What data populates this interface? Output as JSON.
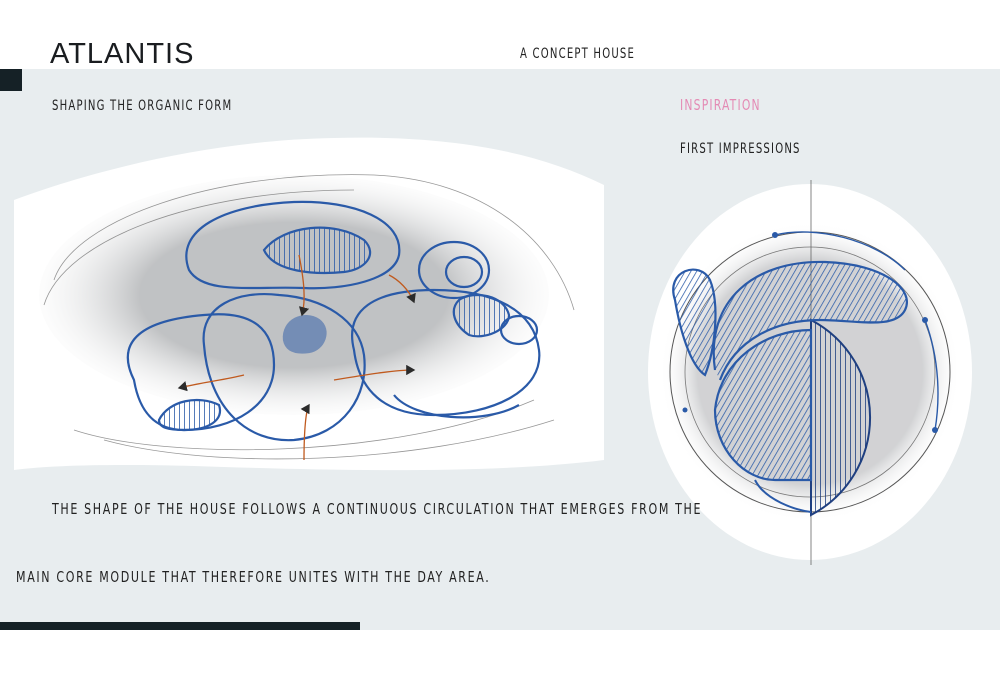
{
  "header": {
    "title": "ATLANTIS",
    "subtitle": "A CONCEPT HOUSE"
  },
  "left_section": {
    "label": "SHAPING THE ORGANIC FORM",
    "description_line1": "THE SHAPE OF THE HOUSE FOLLOWS A CONTINUOUS CIRCULATION THAT EMERGES FROM THE",
    "description_line2": "MAIN CORE MODULE THAT THEREFORE UNITES WITH THE DAY AREA."
  },
  "right_section": {
    "label": "INSPIRATION",
    "sublabel": "FIRST IMPRESSIONS"
  },
  "colors": {
    "panel_bg": "#e8edef",
    "dark": "#152126",
    "accent_pink": "#e48ab4",
    "sketch_blue": "#2a5aa8",
    "arrow_orange": "#c05a1e"
  },
  "images": {
    "organic_form_sketch": "pencil-and-blue-ink-sketch-of-organic-house-plan",
    "first_impression_sketch": "circular-pencil-sketch-with-hatched-half-sphere"
  }
}
